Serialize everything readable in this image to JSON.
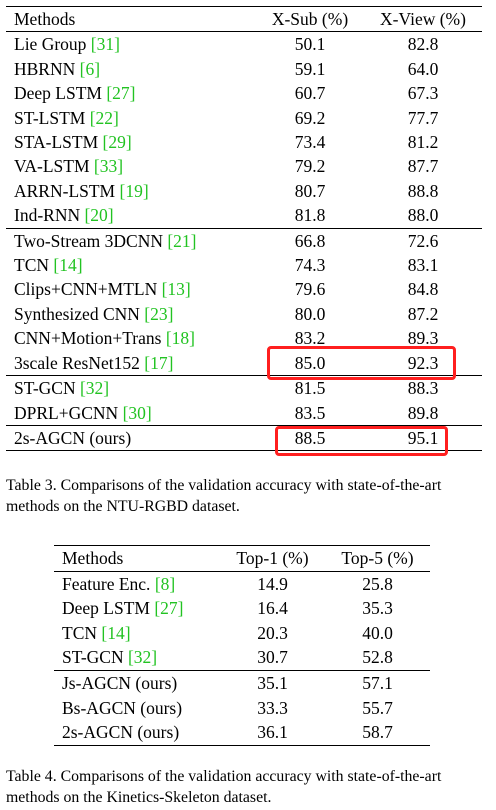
{
  "table3": {
    "headers": [
      "Methods",
      "X-Sub (%)",
      "X-View (%)"
    ],
    "rows": [
      {
        "name": "Lie Group ",
        "ref": "[31]",
        "xsub": "50.1",
        "xview": "82.8"
      },
      {
        "name": "HBRNN ",
        "ref": "[6]",
        "xsub": "59.1",
        "xview": "64.0"
      },
      {
        "name": "Deep LSTM ",
        "ref": "[27]",
        "xsub": "60.7",
        "xview": "67.3"
      },
      {
        "name": "ST-LSTM ",
        "ref": "[22]",
        "xsub": "69.2",
        "xview": "77.7"
      },
      {
        "name": "STA-LSTM ",
        "ref": "[29]",
        "xsub": "73.4",
        "xview": "81.2"
      },
      {
        "name": "VA-LSTM ",
        "ref": "[33]",
        "xsub": "79.2",
        "xview": "87.7"
      },
      {
        "name": "ARRN-LSTM ",
        "ref": "[19]",
        "xsub": "80.7",
        "xview": "88.8"
      },
      {
        "name": "Ind-RNN ",
        "ref": "[20]",
        "xsub": "81.8",
        "xview": "88.0"
      },
      {
        "name": "Two-Stream 3DCNN ",
        "ref": "[21]",
        "xsub": "66.8",
        "xview": "72.6"
      },
      {
        "name": "TCN ",
        "ref": "[14]",
        "xsub": "74.3",
        "xview": "83.1"
      },
      {
        "name": "Clips+CNN+MTLN ",
        "ref": "[13]",
        "xsub": "79.6",
        "xview": "84.8"
      },
      {
        "name": "Synthesized CNN ",
        "ref": "[23]",
        "xsub": "80.0",
        "xview": "87.2"
      },
      {
        "name": "CNN+Motion+Trans ",
        "ref": "[18]",
        "xsub": "83.2",
        "xview": "89.3"
      },
      {
        "name": "3scale ResNet152 ",
        "ref": "[17]",
        "xsub": "85.0",
        "xview": "92.3"
      },
      {
        "name": "ST-GCN ",
        "ref": "[32]",
        "xsub": "81.5",
        "xview": "88.3"
      },
      {
        "name": "DPRL+GCNN ",
        "ref": "[30]",
        "xsub": "83.5",
        "xview": "89.8"
      },
      {
        "name": "2s-AGCN (ours)",
        "ref": "",
        "xsub": "88.5",
        "xview": "95.1"
      }
    ],
    "caption": "Table 3. Comparisons of the validation accuracy with state-of-the-art methods on the NTU-RGBD dataset."
  },
  "table4": {
    "headers": [
      "Methods",
      "Top-1 (%)",
      "Top-5 (%)"
    ],
    "rows": [
      {
        "name": "Feature Enc. ",
        "ref": "[8]",
        "top1": "14.9",
        "top5": "25.8"
      },
      {
        "name": "Deep LSTM ",
        "ref": "[27]",
        "top1": "16.4",
        "top5": "35.3"
      },
      {
        "name": "TCN ",
        "ref": "[14]",
        "top1": "20.3",
        "top5": "40.0"
      },
      {
        "name": "ST-GCN ",
        "ref": "[32]",
        "top1": "30.7",
        "top5": "52.8"
      },
      {
        "name": "Js-AGCN (ours)",
        "ref": "",
        "top1": "35.1",
        "top5": "57.1"
      },
      {
        "name": "Bs-AGCN (ours)",
        "ref": "",
        "top1": "33.3",
        "top5": "55.7"
      },
      {
        "name": "2s-AGCN (ours)",
        "ref": "",
        "top1": "36.1",
        "top5": "58.7"
      }
    ],
    "caption": "Table 4. Comparisons of the validation accuracy with state-of-the-art methods on the Kinetics-Skeleton dataset."
  },
  "colors": {
    "reference_link": "#22c322",
    "highlight_box": "#ff1f1f"
  }
}
